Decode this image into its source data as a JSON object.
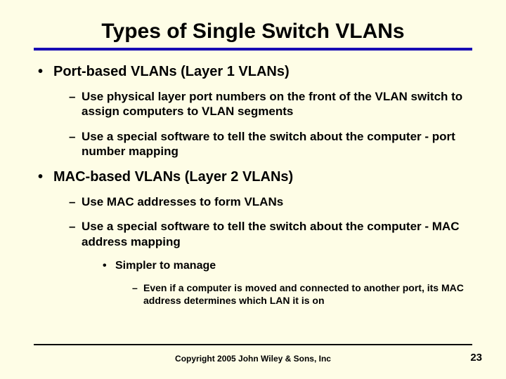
{
  "title": "Types of Single Switch VLANs",
  "bullets": {
    "b1": {
      "marker": "•",
      "text": "Port-based VLANs (Layer 1 VLANs)"
    },
    "b1a": {
      "marker": "–",
      "text": "Use physical layer port numbers on the front of the VLAN switch to assign computers to VLAN segments"
    },
    "b1b": {
      "marker": "–",
      "text": "Use a special software to tell the switch about the computer - port number mapping"
    },
    "b2": {
      "marker": "•",
      "text": "MAC-based VLANs (Layer 2 VLANs)"
    },
    "b2a": {
      "marker": "–",
      "text": "Use MAC addresses to form VLANs"
    },
    "b2b": {
      "marker": "–",
      "text": "Use a special software to tell the switch about the computer - MAC address mapping"
    },
    "b2b1": {
      "marker": "•",
      "text": "Simpler to manage"
    },
    "b2b1a": {
      "marker": "–",
      "text": "Even if a computer is moved and connected to another port, its MAC address determines which LAN it is on"
    }
  },
  "footer": "Copyright 2005 John Wiley & Sons, Inc",
  "page_number": "23",
  "colors": {
    "background": "#fefde6",
    "title_rule": "#180cb4",
    "footer_rule": "#000000",
    "text": "#000000"
  }
}
